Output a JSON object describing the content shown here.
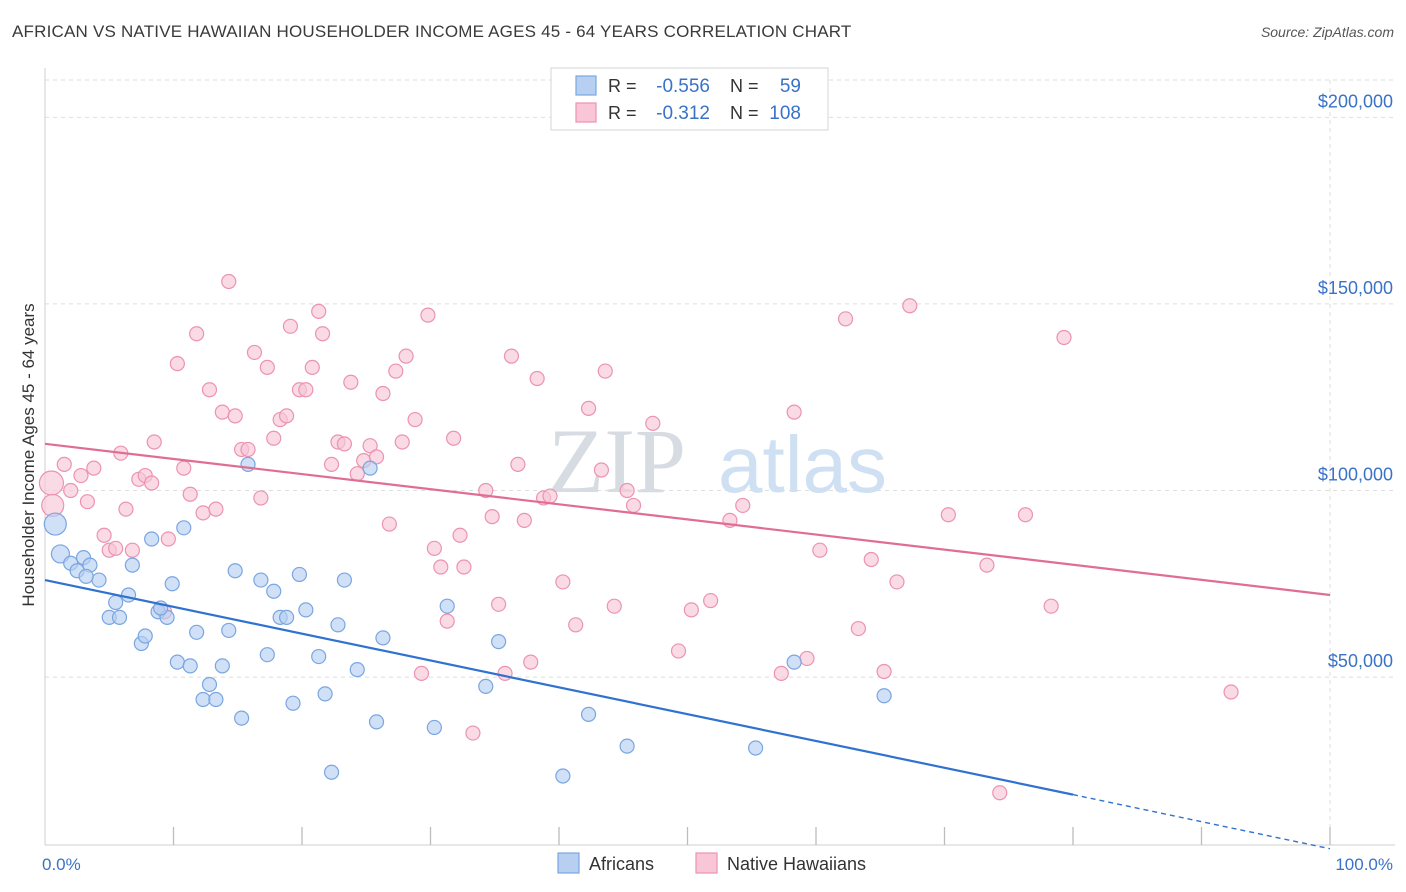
{
  "header": {
    "title": "AFRICAN VS NATIVE HAWAIIAN HOUSEHOLDER INCOME AGES 45 - 64 YEARS CORRELATION CHART",
    "source": "Source: ZipAtlas.com"
  },
  "watermark": {
    "part1": "ZIP",
    "part2": "atlas"
  },
  "legend_box": {
    "rows": [
      {
        "r_label": "R =",
        "r_value": "-0.556",
        "n_label": "N =",
        "n_value": "59"
      },
      {
        "r_label": "R =",
        "r_value": "-0.312",
        "n_label": "N =",
        "n_value": "108"
      }
    ]
  },
  "bottom_legend": [
    "Africans",
    "Native Hawaiians"
  ],
  "colors": {
    "blue_fill": "#b7d0f2",
    "blue_stroke": "#7aa6e0",
    "blue_line": "#2f72d0",
    "pink_fill": "#f8c6d6",
    "pink_stroke": "#ec93b0",
    "pink_line": "#e06d96",
    "tick_text": "#3a72c8",
    "grid": "#dedede"
  },
  "chart_data": {
    "type": "scatter",
    "title": "AFRICAN VS NATIVE HAWAIIAN HOUSEHOLDER INCOME AGES 45 - 64 YEARS CORRELATION CHART",
    "xlabel": "",
    "ylabel": "Householder Income Ages 45 - 64 years",
    "xlim": [
      0,
      100
    ],
    "ylim": [
      5000,
      210000
    ],
    "x_tick_labels": [
      "0.0%",
      "100.0%"
    ],
    "y_ticks": [
      50000,
      100000,
      150000,
      200000
    ],
    "y_tick_labels": [
      "$50,000",
      "$100,000",
      "$150,000",
      "$200,000"
    ],
    "grid": true,
    "legend_position": "top-center",
    "series": [
      {
        "name": "Africans",
        "r": -0.556,
        "n": 59,
        "trend": {
          "x0": 0,
          "y0": 76000,
          "x1": 80,
          "y1": 18500,
          "dash_x1": 100,
          "dash_y1": 4000
        },
        "points": [
          [
            0.8,
            91000,
            22
          ],
          [
            1.2,
            83000,
            18
          ],
          [
            2.0,
            80500,
            14
          ],
          [
            2.5,
            78500,
            14
          ],
          [
            3.0,
            82000,
            14
          ],
          [
            3.5,
            80000,
            14
          ],
          [
            4.2,
            76000,
            14
          ],
          [
            5.0,
            66000,
            14
          ],
          [
            5.5,
            70000,
            14
          ],
          [
            5.8,
            66000,
            14
          ],
          [
            6.5,
            72000,
            14
          ],
          [
            6.8,
            80000,
            14
          ],
          [
            7.5,
            59000,
            14
          ],
          [
            7.8,
            61000,
            14
          ],
          [
            8.3,
            87000,
            14
          ],
          [
            8.8,
            67500,
            14
          ],
          [
            9.5,
            66000,
            14
          ],
          [
            9.9,
            75000,
            14
          ],
          [
            10.3,
            54000,
            14
          ],
          [
            10.8,
            90000,
            14
          ],
          [
            11.3,
            53000,
            14
          ],
          [
            11.8,
            62000,
            14
          ],
          [
            12.3,
            44000,
            14
          ],
          [
            12.8,
            48000,
            14
          ],
          [
            13.3,
            44000,
            14
          ],
          [
            13.8,
            53000,
            14
          ],
          [
            14.3,
            62500,
            14
          ],
          [
            14.8,
            78500,
            14
          ],
          [
            15.3,
            39000,
            14
          ],
          [
            15.8,
            107000,
            14
          ],
          [
            16.8,
            76000,
            14
          ],
          [
            17.3,
            56000,
            14
          ],
          [
            17.8,
            73000,
            14
          ],
          [
            18.3,
            66000,
            14
          ],
          [
            18.8,
            66000,
            14
          ],
          [
            19.3,
            43000,
            14
          ],
          [
            19.8,
            77500,
            14
          ],
          [
            20.3,
            68000,
            14
          ],
          [
            21.3,
            55500,
            14
          ],
          [
            21.8,
            45500,
            14
          ],
          [
            22.3,
            24500,
            14
          ],
          [
            22.8,
            64000,
            14
          ],
          [
            23.3,
            76000,
            14
          ],
          [
            24.3,
            52000,
            14
          ],
          [
            25.3,
            106000,
            14
          ],
          [
            25.8,
            38000,
            14
          ],
          [
            26.3,
            60500,
            14
          ],
          [
            30.3,
            36500,
            14
          ],
          [
            31.3,
            69000,
            14
          ],
          [
            34.3,
            47500,
            14
          ],
          [
            35.3,
            59500,
            14
          ],
          [
            40.3,
            23500,
            14
          ],
          [
            42.3,
            40000,
            14
          ],
          [
            45.3,
            31500,
            14
          ],
          [
            55.3,
            31000,
            14
          ],
          [
            58.3,
            54000,
            14
          ],
          [
            65.3,
            45000,
            14
          ],
          [
            3.2,
            77000,
            14
          ],
          [
            9.0,
            68500,
            14
          ]
        ]
      },
      {
        "name": "Native Hawaiians",
        "r": -0.312,
        "n": 108,
        "trend": {
          "x0": 0,
          "y0": 112500,
          "x1": 100,
          "y1": 72000
        },
        "points": [
          [
            0.5,
            102000,
            24
          ],
          [
            0.6,
            96000,
            22
          ],
          [
            1.5,
            107000,
            14
          ],
          [
            2.0,
            100000,
            14
          ],
          [
            2.8,
            104000,
            14
          ],
          [
            3.3,
            97000,
            14
          ],
          [
            3.8,
            106000,
            14
          ],
          [
            4.6,
            88000,
            14
          ],
          [
            5.0,
            84000,
            14
          ],
          [
            5.5,
            84500,
            14
          ],
          [
            5.9,
            110000,
            14
          ],
          [
            6.3,
            95000,
            14
          ],
          [
            6.8,
            84000,
            14
          ],
          [
            7.3,
            103000,
            14
          ],
          [
            7.8,
            104000,
            14
          ],
          [
            8.3,
            102000,
            14
          ],
          [
            8.5,
            113000,
            14
          ],
          [
            9.3,
            67500,
            14
          ],
          [
            9.6,
            87000,
            14
          ],
          [
            10.3,
            134000,
            14
          ],
          [
            10.8,
            106000,
            14
          ],
          [
            11.3,
            99000,
            14
          ],
          [
            11.8,
            142000,
            14
          ],
          [
            12.3,
            94000,
            14
          ],
          [
            12.8,
            127000,
            14
          ],
          [
            13.3,
            95000,
            14
          ],
          [
            13.8,
            121000,
            14
          ],
          [
            14.3,
            156000,
            14
          ],
          [
            14.8,
            120000,
            14
          ],
          [
            15.3,
            111000,
            14
          ],
          [
            15.8,
            111000,
            14
          ],
          [
            16.3,
            137000,
            14
          ],
          [
            16.8,
            98000,
            14
          ],
          [
            17.3,
            133000,
            14
          ],
          [
            17.8,
            114000,
            14
          ],
          [
            18.3,
            119000,
            14
          ],
          [
            18.8,
            120000,
            14
          ],
          [
            19.1,
            144000,
            14
          ],
          [
            19.8,
            127000,
            14
          ],
          [
            20.3,
            127000,
            14
          ],
          [
            20.8,
            133000,
            14
          ],
          [
            21.3,
            148000,
            14
          ],
          [
            21.6,
            142000,
            14
          ],
          [
            22.3,
            107000,
            14
          ],
          [
            22.8,
            113000,
            14
          ],
          [
            23.3,
            112500,
            14
          ],
          [
            23.8,
            129000,
            14
          ],
          [
            24.3,
            104500,
            14
          ],
          [
            24.8,
            108000,
            14
          ],
          [
            25.3,
            112000,
            14
          ],
          [
            25.8,
            109000,
            14
          ],
          [
            26.3,
            126000,
            14
          ],
          [
            26.8,
            91000,
            14
          ],
          [
            27.3,
            132000,
            14
          ],
          [
            27.8,
            113000,
            14
          ],
          [
            28.1,
            136000,
            14
          ],
          [
            28.8,
            119000,
            14
          ],
          [
            29.3,
            51000,
            14
          ],
          [
            29.8,
            147000,
            14
          ],
          [
            30.3,
            84500,
            14
          ],
          [
            30.8,
            79500,
            14
          ],
          [
            31.3,
            65000,
            14
          ],
          [
            31.8,
            114000,
            14
          ],
          [
            32.3,
            88000,
            14
          ],
          [
            32.6,
            79500,
            14
          ],
          [
            33.3,
            35000,
            14
          ],
          [
            34.3,
            100000,
            14
          ],
          [
            34.8,
            93000,
            14
          ],
          [
            35.3,
            69500,
            14
          ],
          [
            35.8,
            51000,
            14
          ],
          [
            36.3,
            136000,
            14
          ],
          [
            36.8,
            107000,
            14
          ],
          [
            37.3,
            92000,
            14
          ],
          [
            37.8,
            54000,
            14
          ],
          [
            38.3,
            130000,
            14
          ],
          [
            38.8,
            98000,
            14
          ],
          [
            39.3,
            98500,
            14
          ],
          [
            40.3,
            75500,
            14
          ],
          [
            41.3,
            64000,
            14
          ],
          [
            42.3,
            122000,
            14
          ],
          [
            43.3,
            105500,
            14
          ],
          [
            43.6,
            132000,
            14
          ],
          [
            44.3,
            69000,
            14
          ],
          [
            45.3,
            100000,
            14
          ],
          [
            45.8,
            96000,
            14
          ],
          [
            47.3,
            118000,
            14
          ],
          [
            49.3,
            57000,
            14
          ],
          [
            50.3,
            68000,
            14
          ],
          [
            51.8,
            70500,
            14
          ],
          [
            53.3,
            92000,
            14
          ],
          [
            54.3,
            96000,
            14
          ],
          [
            57.3,
            51000,
            14
          ],
          [
            58.3,
            121000,
            14
          ],
          [
            59.3,
            55000,
            14
          ],
          [
            60.3,
            84000,
            14
          ],
          [
            62.3,
            146000,
            14
          ],
          [
            63.3,
            63000,
            14
          ],
          [
            64.3,
            81500,
            14
          ],
          [
            65.3,
            51500,
            14
          ],
          [
            66.3,
            75500,
            14
          ],
          [
            67.3,
            149500,
            14
          ],
          [
            70.3,
            93500,
            14
          ],
          [
            73.3,
            80000,
            14
          ],
          [
            74.3,
            19000,
            14
          ],
          [
            76.3,
            93500,
            14
          ],
          [
            78.3,
            69000,
            14
          ],
          [
            79.3,
            141000,
            14
          ],
          [
            92.3,
            46000,
            14
          ]
        ]
      }
    ]
  }
}
